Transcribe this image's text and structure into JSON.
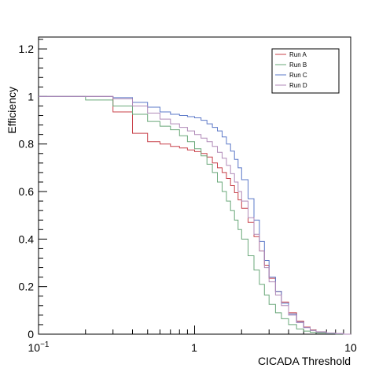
{
  "chart_data": {
    "type": "line",
    "step": true,
    "xlabel": "CICADA Threshold",
    "ylabel": "Efficiency",
    "xscale": "log",
    "xlim": [
      0.1,
      10
    ],
    "ylim": [
      0,
      1.25
    ],
    "x_tick_labels": [
      "10^-1",
      "1",
      "10"
    ],
    "y_tick_labels": [
      "0",
      "0.2",
      "0.4",
      "0.6",
      "0.8",
      "1",
      "1.2"
    ],
    "y_tick_values": [
      0,
      0.2,
      0.4,
      0.6,
      0.8,
      1.0,
      1.2
    ],
    "legend_position": "top-right",
    "series": [
      {
        "name": "Run A",
        "color": "#c8414a",
        "x": [
          0.1,
          0.2,
          0.3,
          0.4,
          0.5,
          0.6,
          0.7,
          0.8,
          0.9,
          1.0,
          1.1,
          1.2,
          1.3,
          1.4,
          1.5,
          1.6,
          1.7,
          1.8,
          1.9,
          2.0,
          2.2,
          2.4,
          2.6,
          2.8,
          3.0,
          3.3,
          3.6,
          4.0,
          4.5,
          5.0,
          5.5,
          6.0,
          7.0,
          8.0,
          9.0
        ],
        "y": [
          1.0,
          1.0,
          0.935,
          0.845,
          0.81,
          0.8,
          0.79,
          0.783,
          0.775,
          0.768,
          0.76,
          0.745,
          0.72,
          0.7,
          0.68,
          0.655,
          0.625,
          0.595,
          0.565,
          0.53,
          0.47,
          0.41,
          0.35,
          0.29,
          0.235,
          0.18,
          0.135,
          0.09,
          0.055,
          0.03,
          0.018,
          0.01,
          0.004,
          0.002,
          0.0
        ]
      },
      {
        "name": "Run B",
        "color": "#6aa87a",
        "x": [
          0.1,
          0.2,
          0.3,
          0.4,
          0.5,
          0.6,
          0.7,
          0.8,
          0.9,
          1.0,
          1.1,
          1.2,
          1.3,
          1.4,
          1.5,
          1.6,
          1.7,
          1.8,
          1.9,
          2.0,
          2.2,
          2.4,
          2.6,
          2.8,
          3.0,
          3.3,
          3.6,
          4.0,
          4.5,
          5.0,
          5.5,
          6.0,
          7.0,
          8.0,
          9.0
        ],
        "y": [
          1.0,
          0.985,
          0.96,
          0.925,
          0.895,
          0.875,
          0.86,
          0.835,
          0.81,
          0.78,
          0.75,
          0.715,
          0.68,
          0.64,
          0.6,
          0.56,
          0.52,
          0.48,
          0.44,
          0.4,
          0.33,
          0.27,
          0.21,
          0.165,
          0.125,
          0.09,
          0.065,
          0.04,
          0.022,
          0.013,
          0.008,
          0.005,
          0.002,
          0.001,
          0.0
        ]
      },
      {
        "name": "Run C",
        "color": "#5b78c8",
        "x": [
          0.1,
          0.2,
          0.3,
          0.4,
          0.5,
          0.6,
          0.7,
          0.8,
          0.9,
          1.0,
          1.1,
          1.2,
          1.3,
          1.4,
          1.5,
          1.6,
          1.7,
          1.8,
          1.9,
          2.0,
          2.2,
          2.4,
          2.6,
          2.8,
          3.0,
          3.3,
          3.6,
          4.0,
          4.5,
          5.0,
          5.5,
          6.0,
          7.0,
          8.0,
          9.0
        ],
        "y": [
          1.0,
          1.0,
          0.995,
          0.975,
          0.955,
          0.935,
          0.925,
          0.92,
          0.915,
          0.91,
          0.9,
          0.885,
          0.87,
          0.855,
          0.83,
          0.8,
          0.77,
          0.735,
          0.7,
          0.65,
          0.57,
          0.48,
          0.39,
          0.31,
          0.24,
          0.18,
          0.13,
          0.085,
          0.05,
          0.028,
          0.016,
          0.009,
          0.004,
          0.002,
          0.0
        ]
      },
      {
        "name": "Run D",
        "color": "#b08ab8",
        "x": [
          0.1,
          0.2,
          0.3,
          0.4,
          0.5,
          0.6,
          0.7,
          0.8,
          0.9,
          1.0,
          1.1,
          1.2,
          1.3,
          1.4,
          1.5,
          1.6,
          1.7,
          1.8,
          1.9,
          2.0,
          2.2,
          2.4,
          2.6,
          2.8,
          3.0,
          3.3,
          3.6,
          4.0,
          4.5,
          5.0,
          5.5,
          6.0,
          7.0,
          8.0,
          9.0
        ],
        "y": [
          1.0,
          1.0,
          0.99,
          0.96,
          0.93,
          0.905,
          0.885,
          0.87,
          0.855,
          0.84,
          0.825,
          0.81,
          0.79,
          0.765,
          0.74,
          0.71,
          0.675,
          0.64,
          0.6,
          0.56,
          0.49,
          0.42,
          0.35,
          0.28,
          0.22,
          0.165,
          0.12,
          0.08,
          0.048,
          0.028,
          0.016,
          0.009,
          0.004,
          0.002,
          0.0
        ]
      }
    ]
  }
}
